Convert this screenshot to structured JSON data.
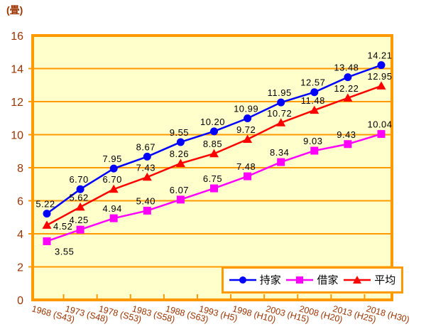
{
  "chart_data": {
    "type": "line",
    "unit_label": "(畳)",
    "categories": [
      "1968 (S43)",
      "1973 (S48)",
      "1978 (S53)",
      "1983 (S58)",
      "1988 (S63)",
      "1993 (H5)",
      "1998 (H10)",
      "2003 (H15)",
      "2008 (H20)",
      "2013 (H25)",
      "2018 (H30)"
    ],
    "series": [
      {
        "name": "持家",
        "marker": "circle",
        "color": "#0000FF",
        "values": [
          5.22,
          6.7,
          7.95,
          8.67,
          9.55,
          10.2,
          10.99,
          11.95,
          12.57,
          13.48,
          14.21
        ]
      },
      {
        "name": "借家",
        "marker": "square",
        "color": "#FF00FF",
        "values": [
          3.55,
          4.25,
          4.94,
          5.4,
          6.07,
          6.75,
          7.48,
          8.34,
          9.03,
          9.43,
          10.04
        ]
      },
      {
        "name": "平均",
        "marker": "triangle",
        "color": "#FF0000",
        "values": [
          4.52,
          5.62,
          6.7,
          7.43,
          8.26,
          8.85,
          9.72,
          10.72,
          11.48,
          12.22,
          12.95
        ]
      }
    ],
    "ylim": [
      0,
      16
    ],
    "yticks": [
      0,
      2,
      4,
      6,
      8,
      10,
      12,
      14,
      16
    ],
    "grid": "horizontal",
    "legend_position": "bottom-right-overlay",
    "data_labels": "shown",
    "colors": {
      "plot_bg": "#FFFFCC",
      "frame": "#FF9900",
      "grid_line": "#FF9900",
      "axis_text": "#993300",
      "data_label_text": "#000000",
      "legend_bg": "#FFFFFF"
    }
  }
}
